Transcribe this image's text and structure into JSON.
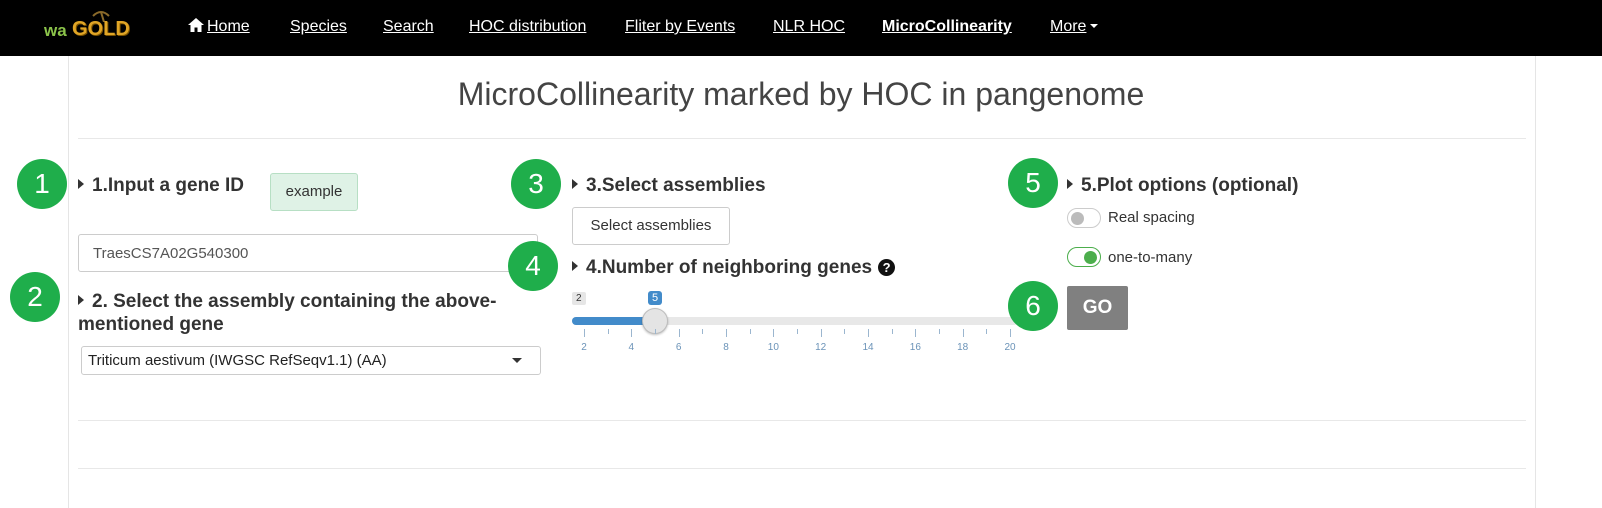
{
  "nav": {
    "logo_left": "wa",
    "logo_right": "GOLD",
    "items": [
      {
        "label": "Home",
        "icon": "home-icon"
      },
      {
        "label": "Species"
      },
      {
        "label": "Search"
      },
      {
        "label": "HOC distribution"
      },
      {
        "label": "Fliter by Events"
      },
      {
        "label": "NLR HOC"
      },
      {
        "label": "MicroCollinearity",
        "active": true
      },
      {
        "label": "More"
      }
    ]
  },
  "page": {
    "title": "MicroCollinearity marked by HOC in pangenome"
  },
  "steps": {
    "s1": {
      "badge": "1",
      "heading": "1.Input a gene ID",
      "example_label": "example",
      "gene_value": "TraesCS7A02G540300"
    },
    "s2": {
      "badge": "2",
      "heading": "2. Select the assembly containing the above-mentioned gene",
      "selected": "Triticum aestivum (IWGSC RefSeqv1.1) (AA)"
    },
    "s3": {
      "badge": "3",
      "heading": "3.Select assemblies",
      "button_label": "Select assemblies"
    },
    "s4": {
      "badge": "4",
      "heading": "4.Number of neighboring genes",
      "help_icon": "?",
      "slider": {
        "min": 2,
        "max": 20,
        "value": 5,
        "min_label": "2",
        "value_label": "5",
        "tick_labels": [
          "2",
          "4",
          "6",
          "8",
          "10",
          "12",
          "14",
          "16",
          "18",
          "20"
        ]
      }
    },
    "s5": {
      "badge": "5",
      "heading": "5.Plot options (optional)",
      "options": [
        {
          "label": "Real spacing",
          "on": false
        },
        {
          "label": "one-to-many",
          "on": true
        }
      ]
    },
    "s6": {
      "badge": "6",
      "button_label": "GO"
    }
  },
  "colors": {
    "navbar": "#000000",
    "badge": "#1fae4b",
    "slider": "#428bca",
    "go": "#808080"
  }
}
